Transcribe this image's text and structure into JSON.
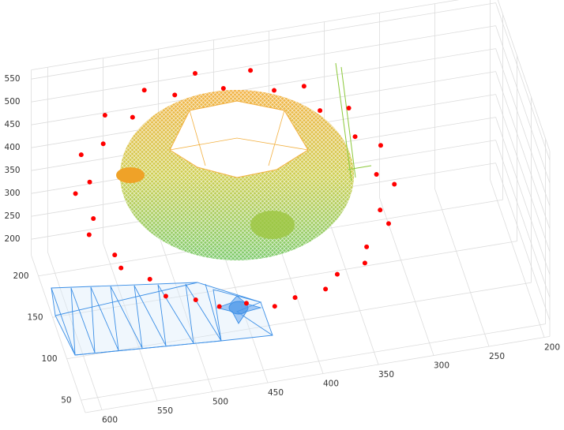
{
  "chart_data": {
    "type": "scatter3d",
    "xlim": [
      615,
      195
    ],
    "ylim": [
      35,
      225
    ],
    "zlim": [
      165,
      570
    ],
    "xticks": [
      600,
      550,
      500,
      450,
      400,
      350,
      300,
      250,
      200
    ],
    "yticks": [
      50,
      100,
      150,
      200
    ],
    "zticks": [
      200,
      250,
      300,
      350,
      400,
      450,
      500,
      550
    ],
    "grid": true,
    "series": [
      {
        "color": "#ff0000",
        "x": [
          582,
          592,
          574,
          575,
          552,
          544,
          518,
          502,
          476,
          454,
          432,
          406,
          390,
          364,
          356,
          333,
          334,
          316,
          326,
          316,
          334,
          333,
          356,
          364,
          390,
          406,
          432,
          454,
          476,
          502,
          518,
          544,
          552,
          575,
          574,
          592
        ],
        "y": [
          135,
          159,
          179,
          205,
          217,
          242,
          246,
          267,
          261,
          275,
          261,
          267,
          246,
          242,
          217,
          205,
          179,
          159,
          135,
          111,
          91,
          65,
          53,
          28,
          24,
          3,
          9,
          -5,
          9,
          3,
          24,
          28,
          53,
          65,
          91,
          111
        ],
        "z": [
          395,
          410,
          392,
          405,
          398,
          412,
          390,
          405,
          395,
          408,
          392,
          410,
          398,
          404,
          393,
          411,
          396,
          406,
          390,
          408,
          395,
          412,
          392,
          405,
          398,
          410,
          391,
          406,
          396,
          410,
          393,
          404,
          399,
          411,
          392,
          407
        ]
      }
    ]
  }
}
